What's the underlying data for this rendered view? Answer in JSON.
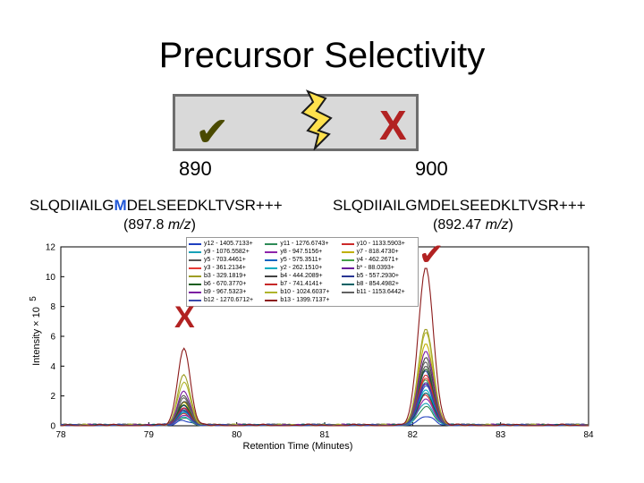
{
  "title": "Precursor Selectivity",
  "indicators": {
    "check_symbol": "✔",
    "x_symbol": "X",
    "bolt_icon": "lightning-bolt"
  },
  "precursors": [
    {
      "label": "890",
      "sequence_prefix": "SLQDIIAILG",
      "sequence_highlight": "M",
      "sequence_suffix": "DELSEEDKLTVSR+++",
      "mz_open": "(897.8 ",
      "mz_unit": "m/z",
      "mz_close": ")"
    },
    {
      "label": "900",
      "sequence_prefix": "SLQDIIAILG",
      "sequence_highlight": "M",
      "sequence_suffix": "DELSEEDKLTVSR+++",
      "mz_open": "(892.47 ",
      "mz_unit": "m/z",
      "mz_close": ")"
    }
  ],
  "colors": {
    "highlight_residue": "#1f56d6",
    "mark_red": "#b22222",
    "box_fill": "#d9d9d9",
    "box_border": "#6e6e6e"
  },
  "chart_data": {
    "type": "line",
    "xlabel": "Retention Time (Minutes)",
    "ylabel": "Intensity × 10",
    "ylabel_exponent": "5",
    "xlim": [
      78,
      84
    ],
    "ylim": [
      0,
      12
    ],
    "x_ticks": [
      "78",
      "79",
      "80",
      "81",
      "82",
      "83",
      "84"
    ],
    "y_ticks": [
      "0",
      "2",
      "4",
      "6",
      "8",
      "10",
      "12"
    ],
    "legend_location": "top-center",
    "series": [
      {
        "name": "y12 - 1405.7133+",
        "color": "#1f3fbf",
        "peaks": [
          0.3,
          0.6
        ]
      },
      {
        "name": "y11 - 1276.6743+",
        "color": "#2e8b57",
        "peaks": [
          0.5,
          1.2
        ]
      },
      {
        "name": "y10 - 1133.5903+",
        "color": "#cc2a2a",
        "peaks": [
          0.8,
          2.0
        ]
      },
      {
        "name": "y9 - 1076.5582+",
        "color": "#17a2b8",
        "peaks": [
          0.6,
          1.5
        ]
      },
      {
        "name": "y8 - 947.5156+",
        "color": "#8e24aa",
        "peaks": [
          0.7,
          1.8
        ]
      },
      {
        "name": "y7 - 818.4730+",
        "color": "#c0b000",
        "peaks": [
          1.5,
          5.5
        ]
      },
      {
        "name": "y5 - 703.4461+",
        "color": "#555555",
        "peaks": [
          2.0,
          4.0
        ]
      },
      {
        "name": "y5 - 575.3511+",
        "color": "#1565c0",
        "peaks": [
          0.9,
          2.6
        ]
      },
      {
        "name": "y4 - 462.2671+",
        "color": "#43a047",
        "peaks": [
          1.0,
          3.0
        ]
      },
      {
        "name": "y3 - 361.2134+",
        "color": "#e53935",
        "peaks": [
          1.2,
          3.2
        ]
      },
      {
        "name": "y2 - 262.1510+",
        "color": "#00acc1",
        "peaks": [
          0.9,
          2.4
        ]
      },
      {
        "name": "b* - 88.0393+",
        "color": "#6a1b9a",
        "peaks": [
          1.1,
          2.8
        ]
      },
      {
        "name": "b3 - 329.1819+",
        "color": "#9e9d24",
        "peaks": [
          3.4,
          6.5
        ]
      },
      {
        "name": "b4 - 444.2089+",
        "color": "#424242",
        "peaks": [
          1.6,
          4.5
        ]
      },
      {
        "name": "b5 - 557.2930+",
        "color": "#283593",
        "peaks": [
          1.3,
          3.6
        ]
      },
      {
        "name": "b6 - 670.3770+",
        "color": "#1b5e20",
        "peaks": [
          1.4,
          3.8
        ]
      },
      {
        "name": "b7 - 741.4141+",
        "color": "#c62828",
        "peaks": [
          1.2,
          3.4
        ]
      },
      {
        "name": "b8 - 854.4982+",
        "color": "#006064",
        "peaks": [
          1.0,
          2.2
        ]
      },
      {
        "name": "b9 - 967.5323+",
        "color": "#7b1fa2",
        "peaks": [
          2.3,
          5.0
        ]
      },
      {
        "name": "b10 - 1024.6037+",
        "color": "#afb42b",
        "peaks": [
          2.9,
          6.2
        ]
      },
      {
        "name": "b11 - 1153.6442+",
        "color": "#616161",
        "peaks": [
          1.8,
          4.2
        ]
      },
      {
        "name": "b12 - 1270.6712+",
        "color": "#3949ab",
        "peaks": [
          1.0,
          2.9
        ]
      },
      {
        "name": "b13 - 1399.7137+",
        "color": "#8b1a1a",
        "peaks": [
          5.2,
          10.6
        ]
      }
    ],
    "peak_centers": [
      79.4,
      82.15
    ]
  }
}
